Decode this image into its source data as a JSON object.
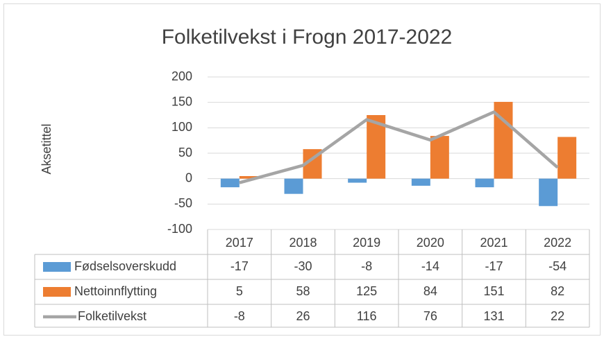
{
  "chart_data": {
    "type": "bar",
    "title": "Folketilvekst i Frogn 2017-2022",
    "y_label": "Aksetittel",
    "categories": [
      "2017",
      "2018",
      "2019",
      "2020",
      "2021",
      "2022"
    ],
    "series": [
      {
        "name": "Fødselsoverskudd",
        "type": "bar",
        "color": "#5b9bd5",
        "values": [
          -17,
          -30,
          -8,
          -14,
          -17,
          -54
        ]
      },
      {
        "name": "Nettoinnflytting",
        "type": "bar",
        "color": "#ed7d31",
        "values": [
          5,
          58,
          125,
          84,
          151,
          82
        ]
      },
      {
        "name": "Folketilvekst",
        "type": "line",
        "color": "#a5a5a5",
        "values": [
          -8,
          26,
          116,
          76,
          131,
          22
        ]
      }
    ],
    "ylim": [
      -100,
      200
    ],
    "yticks": [
      -100,
      -50,
      0,
      50,
      100,
      150,
      200
    ],
    "grid": true,
    "data_table": true
  }
}
